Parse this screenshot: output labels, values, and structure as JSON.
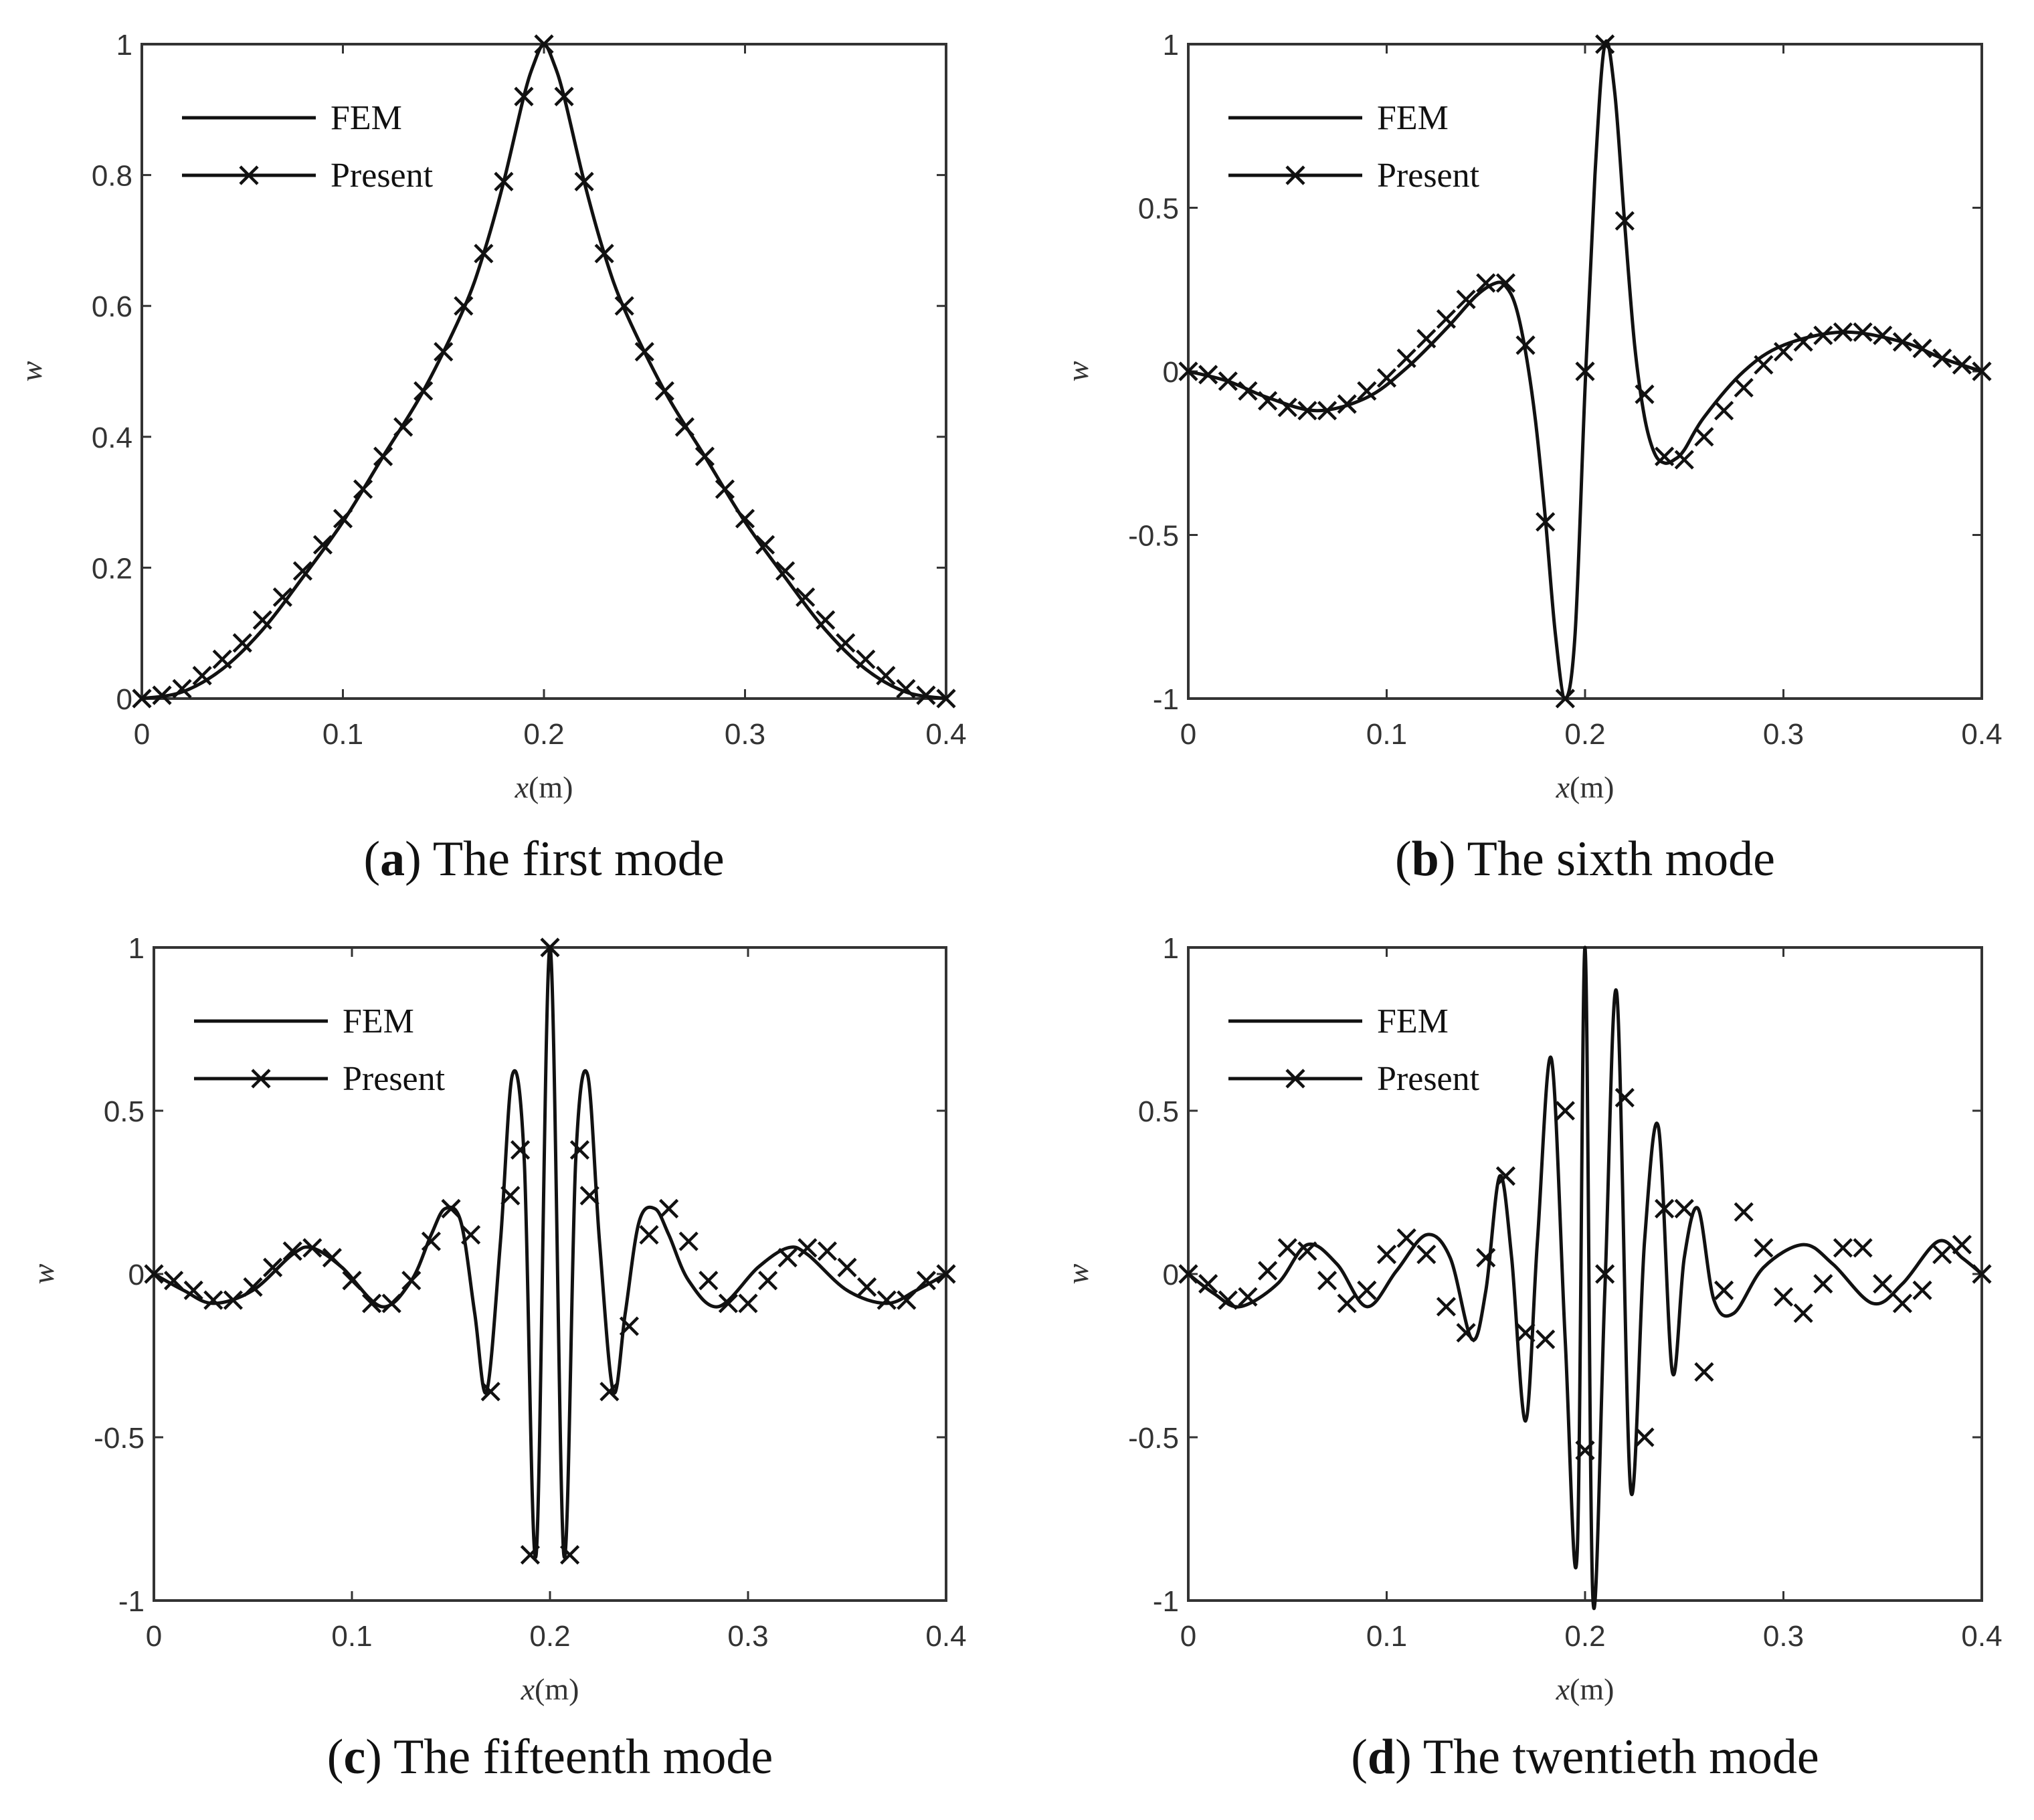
{
  "legend": {
    "fem": "FEM",
    "present": "Present"
  },
  "chart_data": [
    {
      "type": "line",
      "caption_letter": "a",
      "caption_text": "The first mode",
      "xlabel_var": "x",
      "xlabel_unit": "(m)",
      "ylabel": "w",
      "xlim": [
        0,
        0.4
      ],
      "ylim": [
        0,
        1
      ],
      "xticks": [
        "0",
        "0.1",
        "0.2",
        "0.3",
        "0.4"
      ],
      "yticks": [
        "0",
        "0.2",
        "0.4",
        "0.6",
        "0.8",
        "1"
      ],
      "legend_position": "top-left",
      "grid": false,
      "series": [
        {
          "name": "FEM",
          "marker": "none",
          "x": [
            0,
            0.02,
            0.04,
            0.06,
            0.08,
            0.1,
            0.12,
            0.14,
            0.16,
            0.17,
            0.18,
            0.19,
            0.195,
            0.2,
            0.205,
            0.21,
            0.22,
            0.23,
            0.24,
            0.26,
            0.28,
            0.3,
            0.32,
            0.34,
            0.36,
            0.38,
            0.4
          ],
          "y": [
            0,
            0.01,
            0.045,
            0.105,
            0.185,
            0.27,
            0.37,
            0.47,
            0.595,
            0.68,
            0.79,
            0.92,
            0.97,
            1,
            0.97,
            0.92,
            0.79,
            0.68,
            0.595,
            0.47,
            0.37,
            0.27,
            0.185,
            0.105,
            0.045,
            0.01,
            0
          ]
        },
        {
          "name": "Present",
          "marker": "x",
          "x": [
            0,
            0.01,
            0.02,
            0.03,
            0.04,
            0.05,
            0.06,
            0.07,
            0.08,
            0.09,
            0.1,
            0.11,
            0.12,
            0.13,
            0.14,
            0.15,
            0.16,
            0.17,
            0.18,
            0.19,
            0.2,
            0.21,
            0.22,
            0.23,
            0.24,
            0.25,
            0.26,
            0.27,
            0.28,
            0.29,
            0.3,
            0.31,
            0.32,
            0.33,
            0.34,
            0.35,
            0.36,
            0.37,
            0.38,
            0.39,
            0.4
          ],
          "y": [
            0,
            0.005,
            0.015,
            0.035,
            0.06,
            0.085,
            0.12,
            0.155,
            0.195,
            0.235,
            0.275,
            0.32,
            0.37,
            0.415,
            0.47,
            0.53,
            0.6,
            0.68,
            0.79,
            0.92,
            1,
            0.92,
            0.79,
            0.68,
            0.6,
            0.53,
            0.47,
            0.415,
            0.37,
            0.32,
            0.275,
            0.235,
            0.195,
            0.155,
            0.12,
            0.085,
            0.06,
            0.035,
            0.015,
            0.005,
            0
          ]
        }
      ]
    },
    {
      "type": "line",
      "caption_letter": "b",
      "caption_text": "The sixth mode",
      "xlabel_var": "x",
      "xlabel_unit": "(m)",
      "ylabel": "w",
      "xlim": [
        0,
        0.4
      ],
      "ylim": [
        -1,
        1
      ],
      "xticks": [
        "0",
        "0.1",
        "0.2",
        "0.3",
        "0.4"
      ],
      "yticks": [
        "-1",
        "-0.5",
        "0",
        "0.5",
        "1"
      ],
      "legend_position": "top-left",
      "grid": false,
      "series": [
        {
          "name": "FEM",
          "marker": "none",
          "x": [
            0,
            0.02,
            0.04,
            0.065,
            0.09,
            0.11,
            0.13,
            0.145,
            0.155,
            0.16,
            0.165,
            0.17,
            0.175,
            0.18,
            0.185,
            0.19,
            0.195,
            0.2,
            0.205,
            0.21,
            0.215,
            0.22,
            0.225,
            0.23,
            0.235,
            0.24,
            0.245,
            0.25,
            0.26,
            0.28,
            0.3,
            0.33,
            0.36,
            0.38,
            0.4
          ],
          "y": [
            0,
            -0.03,
            -0.08,
            -0.12,
            -0.08,
            0.01,
            0.13,
            0.23,
            0.27,
            0.26,
            0.2,
            0.06,
            -0.15,
            -0.45,
            -0.8,
            -1,
            -0.8,
            -0.05,
            0.6,
            1,
            0.85,
            0.45,
            0.08,
            -0.14,
            -0.25,
            -0.28,
            -0.27,
            -0.24,
            -0.14,
            0,
            0.08,
            0.12,
            0.09,
            0.04,
            0
          ]
        },
        {
          "name": "Present",
          "marker": "x",
          "x": [
            0,
            0.01,
            0.02,
            0.03,
            0.04,
            0.05,
            0.06,
            0.07,
            0.08,
            0.09,
            0.1,
            0.11,
            0.12,
            0.13,
            0.14,
            0.15,
            0.16,
            0.17,
            0.18,
            0.19,
            0.2,
            0.21,
            0.22,
            0.23,
            0.24,
            0.25,
            0.26,
            0.27,
            0.28,
            0.29,
            0.3,
            0.31,
            0.32,
            0.33,
            0.34,
            0.35,
            0.36,
            0.37,
            0.38,
            0.39,
            0.4
          ],
          "y": [
            0,
            -0.01,
            -0.03,
            -0.06,
            -0.09,
            -0.11,
            -0.12,
            -0.12,
            -0.1,
            -0.06,
            -0.02,
            0.04,
            0.1,
            0.16,
            0.22,
            0.27,
            0.27,
            0.08,
            -0.46,
            -1,
            0,
            1,
            0.46,
            -0.07,
            -0.26,
            -0.27,
            -0.2,
            -0.12,
            -0.05,
            0.02,
            0.06,
            0.09,
            0.11,
            0.12,
            0.12,
            0.11,
            0.09,
            0.07,
            0.04,
            0.02,
            0
          ]
        }
      ]
    },
    {
      "type": "line",
      "caption_letter": "c",
      "caption_text": "The fifteenth mode",
      "xlabel_var": "x",
      "xlabel_unit": "(m)",
      "ylabel": "w",
      "xlim": [
        0,
        0.4
      ],
      "ylim": [
        -1,
        1
      ],
      "xticks": [
        "0",
        "0.1",
        "0.2",
        "0.3",
        "0.4"
      ],
      "yticks": [
        "-1",
        "-0.5",
        "0",
        "0.5",
        "1"
      ],
      "legend_position": "top-left",
      "grid": false,
      "series": [
        {
          "name": "FEM",
          "marker": "none",
          "x": [
            0,
            0.015,
            0.03,
            0.05,
            0.07,
            0.08,
            0.095,
            0.115,
            0.13,
            0.14,
            0.147,
            0.155,
            0.162,
            0.168,
            0.175,
            0.181,
            0.187,
            0.193,
            0.2,
            0.207,
            0.213,
            0.219,
            0.225,
            0.232,
            0.238,
            0.245,
            0.253,
            0.26,
            0.27,
            0.285,
            0.305,
            0.32,
            0.33,
            0.35,
            0.37,
            0.385,
            0.4
          ],
          "y": [
            0,
            -0.05,
            -0.09,
            -0.05,
            0.06,
            0.08,
            0.02,
            -0.1,
            -0.02,
            0.12,
            0.2,
            0.16,
            -0.12,
            -0.36,
            0.1,
            0.61,
            0.35,
            -0.86,
            1,
            -0.86,
            0.35,
            0.61,
            0.1,
            -0.36,
            -0.12,
            0.16,
            0.2,
            0.12,
            -0.02,
            -0.1,
            0.02,
            0.08,
            0.06,
            -0.05,
            -0.09,
            -0.05,
            0
          ]
        },
        {
          "name": "Present",
          "marker": "x",
          "x": [
            0,
            0.01,
            0.02,
            0.03,
            0.04,
            0.05,
            0.06,
            0.07,
            0.08,
            0.09,
            0.1,
            0.11,
            0.12,
            0.13,
            0.14,
            0.15,
            0.16,
            0.17,
            0.18,
            0.185,
            0.19,
            0.2,
            0.21,
            0.215,
            0.22,
            0.23,
            0.24,
            0.25,
            0.26,
            0.27,
            0.28,
            0.29,
            0.3,
            0.31,
            0.32,
            0.33,
            0.34,
            0.35,
            0.36,
            0.37,
            0.38,
            0.39,
            0.4
          ],
          "y": [
            0,
            -0.02,
            -0.05,
            -0.08,
            -0.08,
            -0.04,
            0.02,
            0.07,
            0.08,
            0.05,
            -0.02,
            -0.09,
            -0.09,
            -0.02,
            0.1,
            0.2,
            0.12,
            -0.36,
            0.24,
            0.38,
            -0.86,
            1,
            -0.86,
            0.38,
            0.24,
            -0.36,
            -0.16,
            0.12,
            0.2,
            0.1,
            -0.02,
            -0.09,
            -0.09,
            -0.02,
            0.05,
            0.08,
            0.07,
            0.02,
            -0.04,
            -0.08,
            -0.08,
            -0.02,
            0
          ]
        }
      ]
    },
    {
      "type": "line",
      "caption_letter": "d",
      "caption_text": "The twentieth mode",
      "xlabel_var": "x",
      "xlabel_unit": "(m)",
      "ylabel": "w",
      "xlim": [
        0,
        0.4
      ],
      "ylim": [
        -1,
        1
      ],
      "xticks": [
        "0",
        "0.1",
        "0.2",
        "0.3",
        "0.4"
      ],
      "yticks": [
        "-1",
        "-0.5",
        "0",
        "0.5",
        "1"
      ],
      "legend_position": "top-left",
      "grid": false,
      "series": [
        {
          "name": "FEM",
          "marker": "none",
          "x": [
            0,
            0.013,
            0.026,
            0.045,
            0.06,
            0.075,
            0.09,
            0.105,
            0.12,
            0.132,
            0.143,
            0.15,
            0.157,
            0.163,
            0.17,
            0.176,
            0.183,
            0.19,
            0.196,
            0.2,
            0.204,
            0.21,
            0.216,
            0.223,
            0.23,
            0.237,
            0.244,
            0.25,
            0.257,
            0.265,
            0.275,
            0.29,
            0.31,
            0.325,
            0.345,
            0.36,
            0.378,
            0.39,
            0.4
          ],
          "y": [
            0,
            -0.06,
            -0.1,
            -0.03,
            0.09,
            0.03,
            -0.1,
            0.01,
            0.12,
            0.05,
            -0.2,
            -0.05,
            0.3,
            0.05,
            -0.45,
            0.1,
            0.66,
            -0.2,
            -0.86,
            1,
            -1,
            -0.05,
            0.86,
            -0.66,
            0.1,
            0.45,
            -0.3,
            0.05,
            0.2,
            -0.08,
            -0.12,
            0.02,
            0.09,
            0.03,
            -0.09,
            -0.03,
            0.1,
            0.05,
            0
          ]
        },
        {
          "name": "Present",
          "marker": "x",
          "x": [
            0,
            0.01,
            0.02,
            0.03,
            0.04,
            0.05,
            0.06,
            0.07,
            0.08,
            0.09,
            0.1,
            0.11,
            0.12,
            0.13,
            0.14,
            0.15,
            0.16,
            0.17,
            0.18,
            0.19,
            0.2,
            0.21,
            0.22,
            0.23,
            0.24,
            0.25,
            0.26,
            0.27,
            0.28,
            0.29,
            0.3,
            0.31,
            0.32,
            0.33,
            0.34,
            0.35,
            0.36,
            0.37,
            0.38,
            0.39,
            0.4
          ],
          "y": [
            0,
            -0.03,
            -0.08,
            -0.07,
            0.01,
            0.08,
            0.07,
            -0.02,
            -0.09,
            -0.05,
            0.06,
            0.11,
            0.06,
            -0.1,
            -0.18,
            0.05,
            0.3,
            -0.18,
            -0.2,
            0.5,
            -0.54,
            0,
            0.54,
            -0.5,
            0.2,
            0.2,
            -0.3,
            -0.05,
            0.19,
            0.08,
            -0.07,
            -0.12,
            -0.03,
            0.08,
            0.08,
            -0.03,
            -0.09,
            -0.05,
            0.06,
            0.09,
            0
          ]
        }
      ]
    }
  ]
}
